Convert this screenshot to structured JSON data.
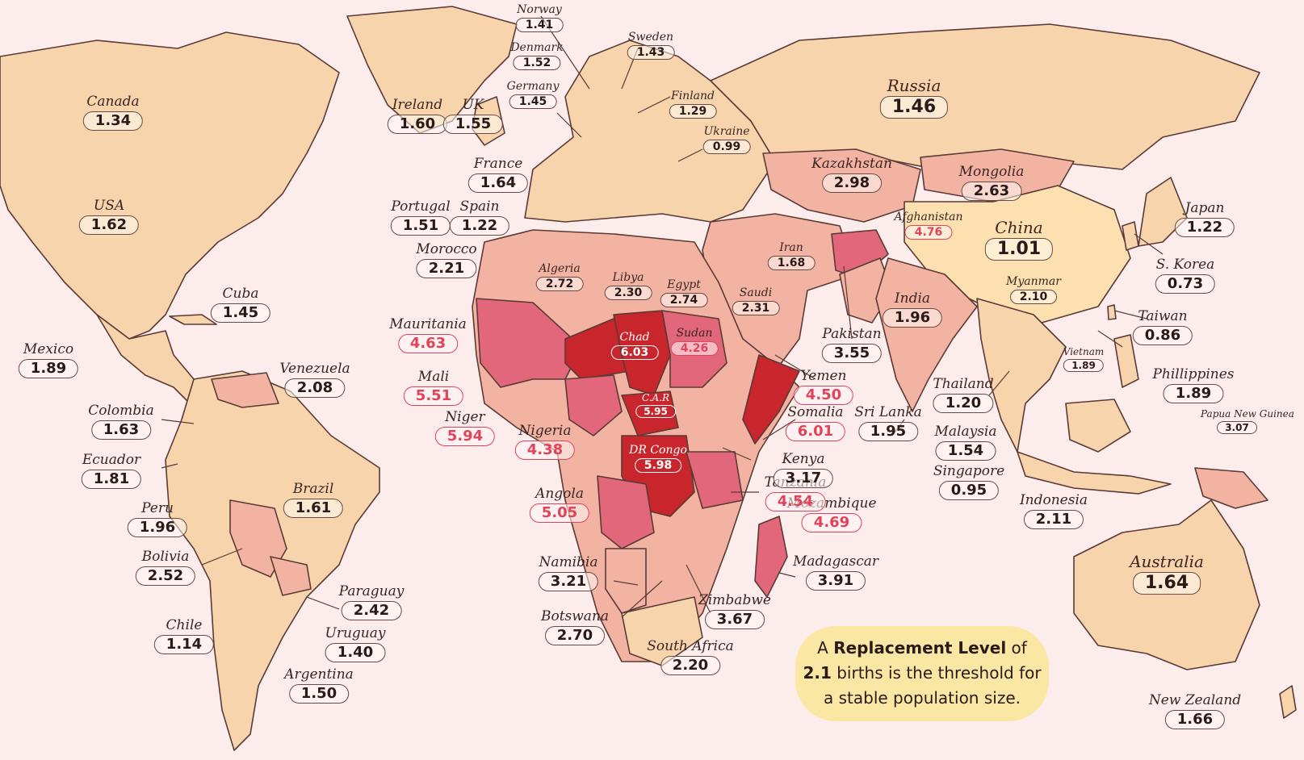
{
  "note": {
    "prefix": "A ",
    "bold1": "Replacement Level",
    "mid1": " of",
    "bold2": "2.1",
    "mid2": " births is the threshold for",
    "line3": "a stable population size."
  },
  "countries": [
    {
      "name": "Canada",
      "value": "1.34"
    },
    {
      "name": "USA",
      "value": "1.62"
    },
    {
      "name": "Mexico",
      "value": "1.89"
    },
    {
      "name": "Cuba",
      "value": "1.45"
    },
    {
      "name": "Venezuela",
      "value": "2.08"
    },
    {
      "name": "Colombia",
      "value": "1.63"
    },
    {
      "name": "Ecuador",
      "value": "1.81"
    },
    {
      "name": "Peru",
      "value": "1.96"
    },
    {
      "name": "Brazil",
      "value": "1.61"
    },
    {
      "name": "Bolivia",
      "value": "2.52"
    },
    {
      "name": "Paraguay",
      "value": "2.42"
    },
    {
      "name": "Chile",
      "value": "1.14"
    },
    {
      "name": "Uruguay",
      "value": "1.40"
    },
    {
      "name": "Argentina",
      "value": "1.50"
    },
    {
      "name": "Ireland",
      "value": "1.60"
    },
    {
      "name": "UK",
      "value": "1.55"
    },
    {
      "name": "Norway",
      "value": "1.41"
    },
    {
      "name": "Denmark",
      "value": "1.52"
    },
    {
      "name": "Germany",
      "value": "1.45"
    },
    {
      "name": "Sweden",
      "value": "1.43"
    },
    {
      "name": "Finland",
      "value": "1.29"
    },
    {
      "name": "Ukraine",
      "value": "0.99"
    },
    {
      "name": "France",
      "value": "1.64"
    },
    {
      "name": "Portugal",
      "value": "1.51"
    },
    {
      "name": "Spain",
      "value": "1.22"
    },
    {
      "name": "Morocco",
      "value": "2.21"
    },
    {
      "name": "Algeria",
      "value": "2.72"
    },
    {
      "name": "Libya",
      "value": "2.30"
    },
    {
      "name": "Egypt",
      "value": "2.74"
    },
    {
      "name": "Saudi",
      "value": "2.31"
    },
    {
      "name": "Iran",
      "value": "1.68"
    },
    {
      "name": "Mauritania",
      "value": "4.63"
    },
    {
      "name": "Mali",
      "value": "5.51"
    },
    {
      "name": "Niger",
      "value": "5.94"
    },
    {
      "name": "Nigeria",
      "value": "4.38"
    },
    {
      "name": "Chad",
      "value": "6.03"
    },
    {
      "name": "Sudan",
      "value": "4.26"
    },
    {
      "name": "C.A.R",
      "value": "5.95"
    },
    {
      "name": "DR Congo",
      "value": "5.98"
    },
    {
      "name": "Angola",
      "value": "5.05"
    },
    {
      "name": "Namibia",
      "value": "3.21"
    },
    {
      "name": "Botswana",
      "value": "2.70"
    },
    {
      "name": "South Africa",
      "value": "2.20"
    },
    {
      "name": "Zimbabwe",
      "value": "3.67"
    },
    {
      "name": "Madagascar",
      "value": "3.91"
    },
    {
      "name": "Mozambique",
      "value": "4.69"
    },
    {
      "name": "Tanzania",
      "value": "4.54"
    },
    {
      "name": "Kenya",
      "value": "3.17"
    },
    {
      "name": "Somalia",
      "value": "6.01"
    },
    {
      "name": "Yemen",
      "value": "4.50"
    },
    {
      "name": "Pakistan",
      "value": "3.55"
    },
    {
      "name": "Afghanistan",
      "value": "4.76"
    },
    {
      "name": "Kazakhstan",
      "value": "2.98"
    },
    {
      "name": "Mongolia",
      "value": "2.63"
    },
    {
      "name": "Russia",
      "value": "1.46"
    },
    {
      "name": "China",
      "value": "1.01"
    },
    {
      "name": "India",
      "value": "1.96"
    },
    {
      "name": "Sri Lanka",
      "value": "1.95"
    },
    {
      "name": "Myanmar",
      "value": "2.10"
    },
    {
      "name": "Thailand",
      "value": "1.20"
    },
    {
      "name": "Vietnam",
      "value": "1.89"
    },
    {
      "name": "Malaysia",
      "value": "1.54"
    },
    {
      "name": "Singapore",
      "value": "0.95"
    },
    {
      "name": "Indonesia",
      "value": "2.11"
    },
    {
      "name": "Japan",
      "value": "1.22"
    },
    {
      "name": "S. Korea",
      "value": "0.73"
    },
    {
      "name": "Taiwan",
      "value": "0.86"
    },
    {
      "name": "Phillippines",
      "value": "1.89"
    },
    {
      "name": "Papua New Guinea",
      "value": "3.07"
    },
    {
      "name": "Australia",
      "value": "1.64"
    },
    {
      "name": "New Zealand",
      "value": "1.66"
    }
  ],
  "colors": {
    "background": "#fceceb",
    "land_low": "#f8d4ac",
    "land_mid": "#f3b3a3",
    "land_high": "#e3677a",
    "land_very_high": "#c8262c",
    "highlight_text": "#e0445a",
    "note_bg": "#fbe7a4"
  }
}
